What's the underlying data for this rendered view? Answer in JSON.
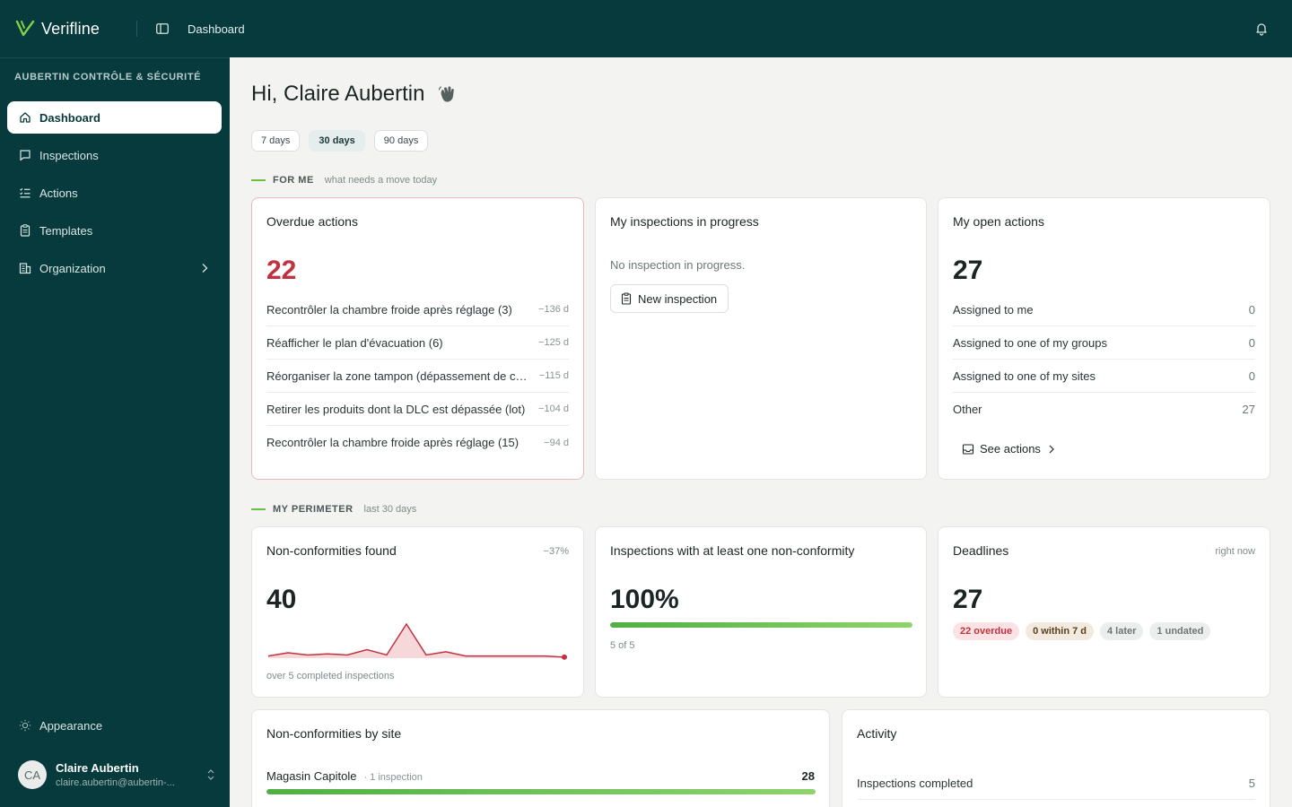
{
  "app": {
    "brand": "Verifline",
    "breadcrumb": "Dashboard"
  },
  "sidebar": {
    "org": "AUBERTIN CONTRÔLE & SÉCURITÉ",
    "items": [
      {
        "label": "Dashboard",
        "icon": "home-icon",
        "active": true
      },
      {
        "label": "Inspections",
        "icon": "inspections-icon"
      },
      {
        "label": "Actions",
        "icon": "actions-list-icon"
      },
      {
        "label": "Templates",
        "icon": "templates-icon"
      },
      {
        "label": "Organization",
        "icon": "building-icon"
      }
    ],
    "appearance": "Appearance",
    "user": {
      "initials": "CA",
      "name": "Claire Aubertin",
      "email": "claire.aubertin@aubertin-..."
    }
  },
  "main": {
    "greeting": "Hi, Claire Aubertin",
    "periods": [
      "7 days",
      "30 days",
      "90 days"
    ],
    "for_me": {
      "title": "FOR ME",
      "subtitle": "what needs a move today"
    },
    "overdue": {
      "title": "Overdue actions",
      "count": "22",
      "rows": [
        {
          "text": "Recontrôler la chambre froide après réglage (3)",
          "meta": "−136 d"
        },
        {
          "text": "Réafficher le plan d'évacuation (6)",
          "meta": "−125 d"
        },
        {
          "text": "Réorganiser la zone tampon (dépassement de capacité)",
          "meta": "−115 d"
        },
        {
          "text": "Retirer les produits dont la DLC est dépassée (lot)",
          "meta": "−104 d"
        },
        {
          "text": "Recontrôler la chambre froide après réglage (15)",
          "meta": "−94 d"
        }
      ]
    },
    "in_progress": {
      "title": "My inspections in progress",
      "empty": "No inspection in progress.",
      "button": "New inspection"
    },
    "open_actions": {
      "title": "My open actions",
      "count": "27",
      "rows": [
        {
          "text": "Assigned to me",
          "value": "0"
        },
        {
          "text": "Assigned to one of my groups",
          "value": "0"
        },
        {
          "text": "Assigned to one of my sites",
          "value": "0"
        },
        {
          "text": "Other",
          "value": "27"
        }
      ],
      "link": "See actions"
    },
    "perimeter": {
      "title": "MY PERIMETER",
      "subtitle": "last 30 days"
    },
    "nonconf": {
      "title": "Non-conformities found",
      "delta": "−37%",
      "count": "40",
      "footnote": "over 5 completed inspections",
      "sparkline": [
        2,
        5,
        3,
        4,
        3,
        8,
        3,
        32,
        3,
        6,
        2,
        2,
        2,
        2,
        2,
        1
      ],
      "color": "#c0323f"
    },
    "inspections_nc": {
      "title": "Inspections with at least one non-conformity",
      "value": "100%",
      "progress": 1.0,
      "footnote": "5 of 5"
    },
    "deadlines": {
      "title": "Deadlines",
      "corner": "right now",
      "count": "27",
      "badges": [
        {
          "label": "22 overdue",
          "tone": "red"
        },
        {
          "label": "0 within 7 d",
          "tone": "amber"
        },
        {
          "label": "4 later",
          "tone": "gray"
        },
        {
          "label": "1 undated",
          "tone": "gray"
        }
      ]
    },
    "by_site": {
      "title": "Non-conformities by site",
      "site": "Magasin Capitole",
      "sub": "· 1 inspection",
      "value": "28",
      "progress": 1.0
    },
    "activity": {
      "title": "Activity",
      "row": "Inspections completed",
      "value": "5"
    }
  }
}
